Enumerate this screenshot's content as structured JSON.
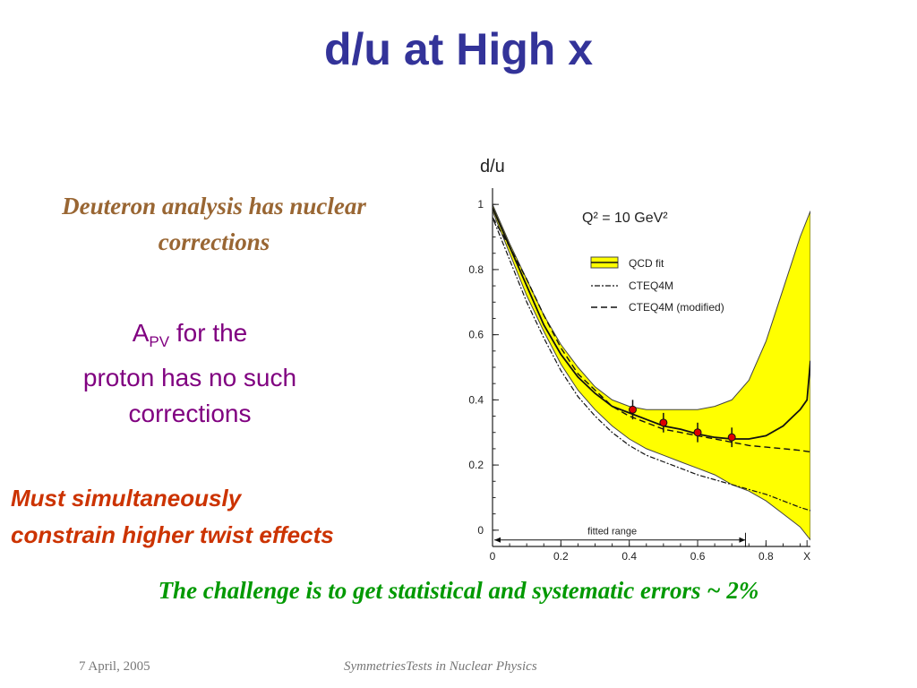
{
  "slide": {
    "title": "d/u at High x",
    "deuteron_text": "Deuteron analysis has nuclear corrections",
    "apv_prefix": "A",
    "apv_sub": "PV",
    "apv_rest_1": " for the",
    "apv_rest_2": "proton has no such corrections",
    "constraint_text_1": "Must simultaneously",
    "constraint_text_2": "constrain higher twist effects",
    "challenge_text": "The challenge is to get statistical and systematic errors ~ 2%",
    "footer_date": "7 April, 2005",
    "footer_title": "SymmetriesTests in Nuclear Physics"
  },
  "colors": {
    "title": "#333399",
    "deuteron": "#996633",
    "apv": "#800080",
    "constraint": "#cc3300",
    "challenge": "#009900",
    "band": "#ffff00",
    "points": "#dd0000"
  },
  "chart_data": {
    "type": "line",
    "ylabel": "d/u",
    "xlabel": "x",
    "annotation": "Q² = 10 GeV²",
    "range_label": "fitted range",
    "xlim": [
      0,
      0.93
    ],
    "ylim": [
      -0.05,
      1.05
    ],
    "x_ticks": [
      "0",
      "0.2",
      "0.4",
      "0.6",
      "0.8",
      "X"
    ],
    "x_tick_values": [
      0,
      0.2,
      0.4,
      0.6,
      0.8,
      0.92
    ],
    "y_ticks": [
      "0",
      "0.2",
      "0.4",
      "0.6",
      "0.8",
      "1"
    ],
    "y_tick_values": [
      0,
      0.2,
      0.4,
      0.6,
      0.8,
      1.0
    ],
    "legend_position": "top-right",
    "legend": [
      "QCD fit",
      "CTEQ4M",
      "CTEQ4M (modified)"
    ],
    "band": {
      "name": "QCD fit",
      "x": [
        0,
        0.05,
        0.1,
        0.15,
        0.2,
        0.25,
        0.3,
        0.35,
        0.4,
        0.45,
        0.5,
        0.55,
        0.6,
        0.65,
        0.7,
        0.75,
        0.8,
        0.85,
        0.9,
        0.93
      ],
      "upper": [
        1.0,
        0.88,
        0.77,
        0.66,
        0.57,
        0.5,
        0.44,
        0.4,
        0.38,
        0.37,
        0.37,
        0.37,
        0.37,
        0.38,
        0.4,
        0.46,
        0.58,
        0.74,
        0.9,
        0.98
      ],
      "lower": [
        0.98,
        0.85,
        0.72,
        0.61,
        0.51,
        0.43,
        0.37,
        0.32,
        0.28,
        0.25,
        0.23,
        0.21,
        0.19,
        0.17,
        0.14,
        0.12,
        0.09,
        0.05,
        0.01,
        -0.03
      ]
    },
    "series": [
      {
        "name": "QCD fit",
        "x": [
          0,
          0.05,
          0.1,
          0.15,
          0.2,
          0.25,
          0.3,
          0.35,
          0.4,
          0.45,
          0.5,
          0.55,
          0.6,
          0.65,
          0.7,
          0.75,
          0.8,
          0.85,
          0.88,
          0.9,
          0.92,
          0.93
        ],
        "y": [
          0.99,
          0.87,
          0.75,
          0.63,
          0.54,
          0.47,
          0.42,
          0.38,
          0.36,
          0.34,
          0.32,
          0.31,
          0.295,
          0.285,
          0.28,
          0.28,
          0.29,
          0.32,
          0.35,
          0.37,
          0.4,
          0.52
        ]
      },
      {
        "name": "CTEQ4M",
        "x": [
          0,
          0.05,
          0.1,
          0.15,
          0.2,
          0.25,
          0.3,
          0.35,
          0.4,
          0.45,
          0.5,
          0.55,
          0.6,
          0.65,
          0.7,
          0.75,
          0.8,
          0.85,
          0.9,
          0.93
        ],
        "y": [
          0.96,
          0.83,
          0.7,
          0.59,
          0.49,
          0.41,
          0.35,
          0.3,
          0.26,
          0.23,
          0.21,
          0.19,
          0.17,
          0.155,
          0.14,
          0.125,
          0.11,
          0.09,
          0.07,
          0.06
        ]
      },
      {
        "name": "CTEQ4M (modified)",
        "x": [
          0,
          0.05,
          0.1,
          0.15,
          0.2,
          0.25,
          0.3,
          0.35,
          0.4,
          0.45,
          0.5,
          0.55,
          0.6,
          0.65,
          0.7,
          0.75,
          0.8,
          0.85,
          0.9,
          0.93
        ],
        "y": [
          0.96,
          0.87,
          0.77,
          0.66,
          0.56,
          0.48,
          0.43,
          0.38,
          0.35,
          0.33,
          0.31,
          0.3,
          0.29,
          0.28,
          0.27,
          0.26,
          0.255,
          0.25,
          0.245,
          0.24
        ]
      }
    ],
    "points": {
      "x": [
        0.41,
        0.5,
        0.6,
        0.7
      ],
      "y": [
        0.37,
        0.33,
        0.3,
        0.285
      ],
      "err": [
        0.03,
        0.03,
        0.03,
        0.03
      ]
    },
    "fitted_range": [
      0,
      0.74
    ]
  }
}
